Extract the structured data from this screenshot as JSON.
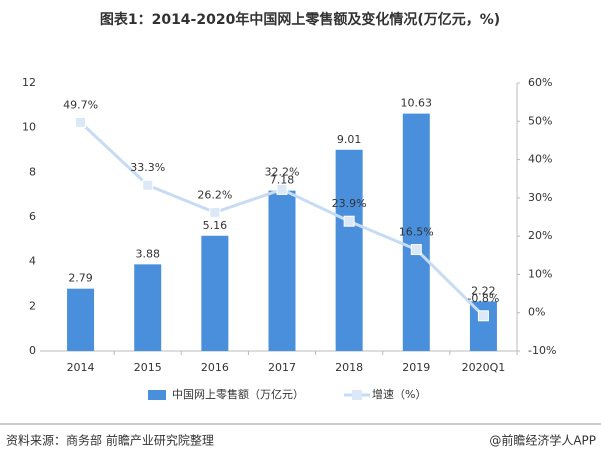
{
  "chart_data": {
    "type": "bar",
    "title": "图表1：2014-2020年中国网上零售额及变化情况(万亿元，%)",
    "categories": [
      "2014",
      "2015",
      "2016",
      "2017",
      "2018",
      "2019",
      "2020Q1"
    ],
    "series": [
      {
        "name": "中国网上零售额（万亿元）",
        "type": "bar",
        "color": "#4a8fdc",
        "values": [
          2.79,
          3.88,
          5.16,
          7.18,
          9.01,
          10.63,
          2.22
        ]
      },
      {
        "name": "增速（%）",
        "type": "line",
        "axis": "y2",
        "color": "#c6dbf4",
        "values": [
          49.7,
          33.3,
          26.2,
          32.2,
          23.9,
          16.5,
          -0.8
        ],
        "value_labels": [
          "49.7%",
          "33.3%",
          "26.2%",
          "32.2%",
          "23.9%",
          "16.5%",
          "-0.8%"
        ]
      }
    ],
    "ylim": [
      0,
      12
    ],
    "yticks": [
      0,
      2,
      4,
      6,
      8,
      10,
      12
    ],
    "y2lim": [
      -10,
      60
    ],
    "y2ticks": [
      {
        "value": -10,
        "label": "-10%"
      },
      {
        "value": 0,
        "label": "0%"
      },
      {
        "value": 10,
        "label": "10%"
      },
      {
        "value": 20,
        "label": "20%"
      },
      {
        "value": 30,
        "label": "30%"
      },
      {
        "value": 40,
        "label": "40%"
      },
      {
        "value": 50,
        "label": "50%"
      },
      {
        "value": 60,
        "label": "60%"
      }
    ],
    "grid": false,
    "legend": "bottom",
    "source": "资料来源：商务部 前瞻产业研究院整理",
    "brand": "@前瞻经济学人APP"
  }
}
